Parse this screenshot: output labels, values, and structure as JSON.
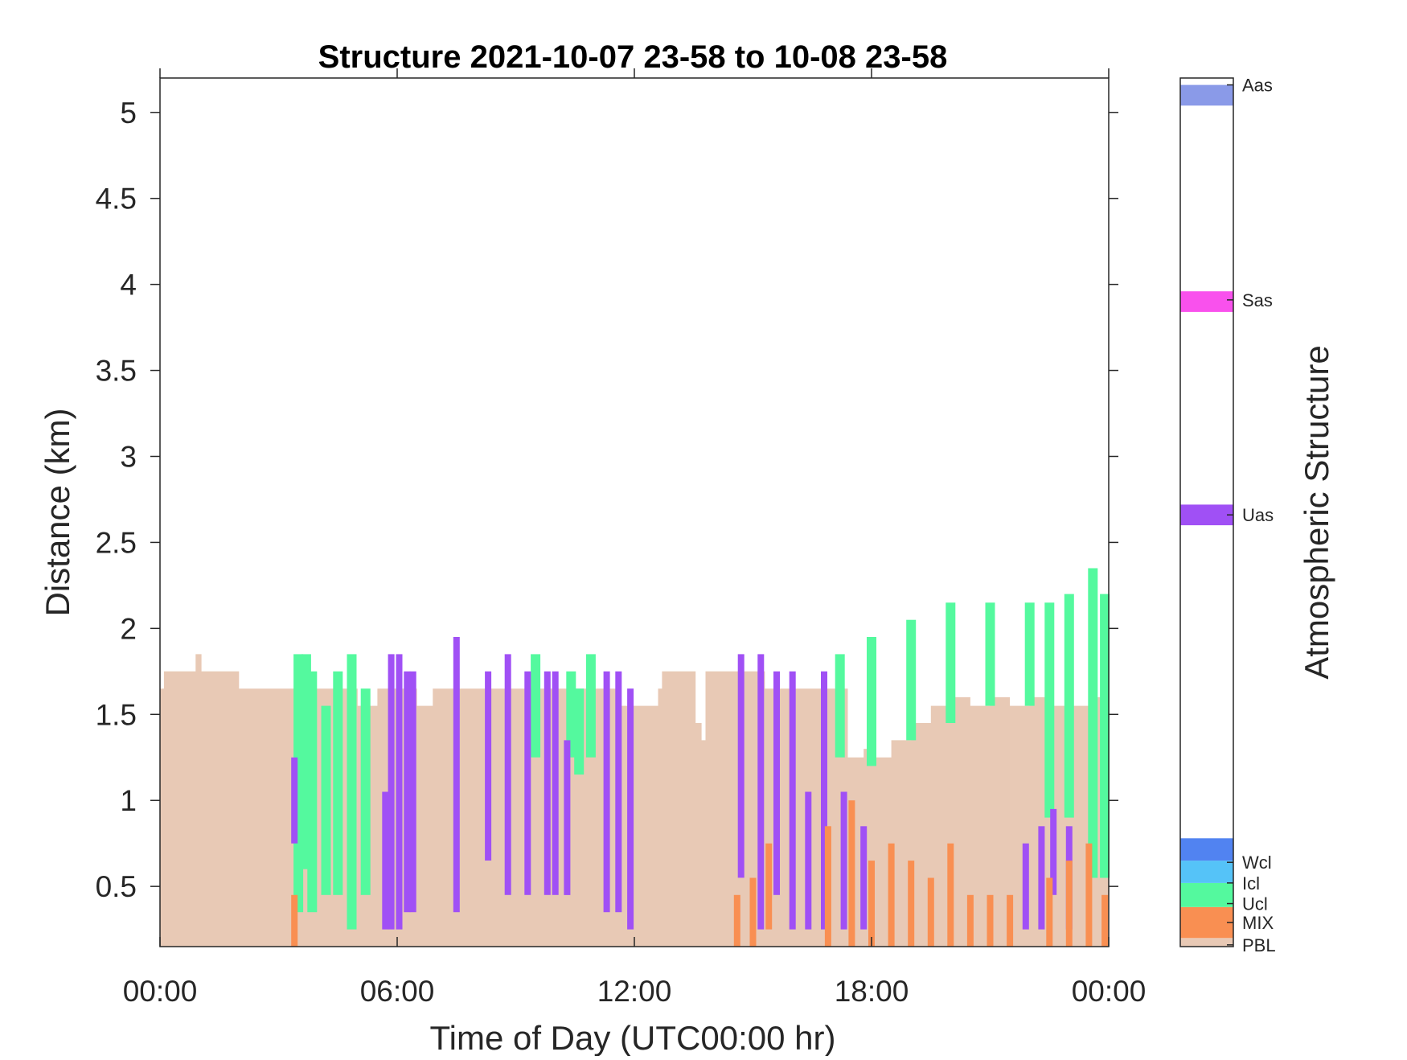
{
  "chart_data": {
    "type": "heatmap",
    "title": "Structure 2021-10-07 23-58 to 10-08 23-58",
    "xlabel": "Time of Day (UTC00:00 hr)",
    "ylabel": "Distance (km)",
    "xlim": [
      0,
      24
    ],
    "ylim": [
      0.15,
      5.2
    ],
    "x_ticks": [
      {
        "value": 0,
        "label": "00:00"
      },
      {
        "value": 6,
        "label": "06:00"
      },
      {
        "value": 12,
        "label": "12:00"
      },
      {
        "value": 18,
        "label": "18:00"
      },
      {
        "value": 24,
        "label": "00:00"
      }
    ],
    "y_ticks": [
      {
        "value": 0.5,
        "label": "0.5"
      },
      {
        "value": 1.0,
        "label": "1"
      },
      {
        "value": 1.5,
        "label": "1.5"
      },
      {
        "value": 2.0,
        "label": "2"
      },
      {
        "value": 2.5,
        "label": "2.5"
      },
      {
        "value": 3.0,
        "label": "3"
      },
      {
        "value": 3.5,
        "label": "3.5"
      },
      {
        "value": 4.0,
        "label": "4"
      },
      {
        "value": 4.5,
        "label": "4.5"
      },
      {
        "value": 5.0,
        "label": "5"
      }
    ],
    "colorbar": {
      "label": "Atmospheric Structure",
      "categories": [
        {
          "code": "PBL",
          "color": "#E8C9B5"
        },
        {
          "code": "MIX",
          "color": "#F98F52"
        },
        {
          "code": "Ucl",
          "color": "#54F99E"
        },
        {
          "code": "Icl",
          "color": "#55C3F8"
        },
        {
          "code": "Wcl",
          "color": "#5183F1"
        },
        {
          "code": "Uas",
          "color": "#A050F5"
        },
        {
          "code": "Sas",
          "color": "#F951ED"
        },
        {
          "code": "Aas",
          "color": "#8A9AE8"
        }
      ]
    },
    "layers": {
      "pbl_top": [
        [
          0.0,
          1.65
        ],
        [
          0.1,
          1.75
        ],
        [
          0.9,
          1.85
        ],
        [
          1.05,
          1.75
        ],
        [
          2.0,
          1.65
        ],
        [
          3.5,
          1.65
        ],
        [
          5.0,
          1.55
        ],
        [
          5.5,
          1.65
        ],
        [
          6.5,
          1.55
        ],
        [
          6.9,
          1.65
        ],
        [
          7.0,
          1.65
        ],
        [
          11.2,
          1.65
        ],
        [
          11.6,
          1.55
        ],
        [
          12.6,
          1.65
        ],
        [
          12.7,
          1.75
        ],
        [
          13.5,
          1.75
        ],
        [
          13.55,
          1.45
        ],
        [
          13.7,
          1.35
        ],
        [
          13.8,
          1.75
        ],
        [
          15.2,
          1.75
        ],
        [
          15.3,
          1.65
        ],
        [
          17.2,
          1.65
        ],
        [
          17.4,
          1.25
        ],
        [
          17.8,
          1.3
        ],
        [
          18.1,
          1.25
        ],
        [
          18.5,
          1.35
        ],
        [
          19.0,
          1.45
        ],
        [
          19.5,
          1.55
        ],
        [
          20.0,
          1.6
        ],
        [
          20.5,
          1.55
        ],
        [
          21.0,
          1.6
        ],
        [
          21.5,
          1.55
        ],
        [
          22.0,
          1.6
        ],
        [
          22.5,
          1.55
        ],
        [
          23.0,
          1.55
        ],
        [
          23.5,
          1.6
        ],
        [
          24.0,
          1.6
        ]
      ],
      "ucl_segments": [
        [
          3.5,
          0.35,
          1.85
        ],
        [
          3.7,
          0.6,
          1.85
        ],
        [
          3.85,
          0.35,
          1.75
        ],
        [
          4.2,
          0.45,
          1.55
        ],
        [
          4.5,
          0.45,
          1.75
        ],
        [
          4.85,
          0.25,
          1.85
        ],
        [
          5.2,
          0.45,
          1.65
        ],
        [
          9.5,
          1.25,
          1.85
        ],
        [
          10.4,
          1.25,
          1.75
        ],
        [
          10.6,
          1.15,
          1.65
        ],
        [
          10.9,
          1.25,
          1.85
        ],
        [
          17.2,
          1.25,
          1.85
        ],
        [
          18.0,
          1.2,
          1.95
        ],
        [
          19.0,
          1.35,
          2.05
        ],
        [
          20.0,
          1.45,
          2.15
        ],
        [
          21.0,
          1.55,
          2.15
        ],
        [
          22.0,
          1.55,
          2.15
        ],
        [
          22.5,
          0.9,
          2.15
        ],
        [
          23.0,
          0.9,
          2.2
        ],
        [
          23.6,
          0.55,
          2.35
        ],
        [
          23.9,
          0.55,
          2.2
        ]
      ],
      "uas_segments": [
        [
          3.4,
          0.75,
          1.25
        ],
        [
          5.7,
          0.25,
          1.05
        ],
        [
          5.85,
          0.25,
          1.85
        ],
        [
          6.05,
          0.25,
          1.85
        ],
        [
          6.25,
          0.35,
          1.75
        ],
        [
          6.4,
          0.35,
          1.75
        ],
        [
          7.5,
          0.35,
          1.95
        ],
        [
          8.3,
          0.65,
          1.75
        ],
        [
          8.8,
          0.45,
          1.85
        ],
        [
          9.3,
          0.45,
          1.75
        ],
        [
          9.8,
          0.45,
          1.75
        ],
        [
          10.0,
          0.45,
          1.75
        ],
        [
          10.3,
          0.45,
          1.35
        ],
        [
          11.3,
          0.35,
          1.75
        ],
        [
          11.6,
          0.35,
          1.75
        ],
        [
          11.9,
          0.25,
          1.65
        ],
        [
          14.7,
          0.55,
          1.85
        ],
        [
          15.2,
          0.25,
          1.85
        ],
        [
          15.6,
          0.45,
          1.75
        ],
        [
          16.0,
          0.25,
          1.75
        ],
        [
          16.4,
          0.25,
          1.05
        ],
        [
          16.8,
          0.25,
          1.75
        ],
        [
          17.3,
          0.25,
          1.05
        ],
        [
          17.8,
          0.25,
          0.85
        ],
        [
          21.9,
          0.25,
          0.75
        ],
        [
          22.3,
          0.25,
          0.85
        ],
        [
          22.6,
          0.45,
          0.95
        ],
        [
          23.0,
          0.25,
          0.85
        ]
      ],
      "mix_segments": [
        [
          3.4,
          0.15,
          0.45
        ],
        [
          14.6,
          0.15,
          0.45
        ],
        [
          15.0,
          0.15,
          0.55
        ],
        [
          15.4,
          0.25,
          0.75
        ],
        [
          16.9,
          0.15,
          0.85
        ],
        [
          17.5,
          0.15,
          1.0
        ],
        [
          18.0,
          0.15,
          0.65
        ],
        [
          18.5,
          0.15,
          0.75
        ],
        [
          19.0,
          0.15,
          0.65
        ],
        [
          19.5,
          0.15,
          0.55
        ],
        [
          20.0,
          0.15,
          0.75
        ],
        [
          20.5,
          0.15,
          0.45
        ],
        [
          21.0,
          0.15,
          0.45
        ],
        [
          21.5,
          0.15,
          0.45
        ],
        [
          22.5,
          0.15,
          0.55
        ],
        [
          23.0,
          0.15,
          0.65
        ],
        [
          23.5,
          0.15,
          0.75
        ],
        [
          23.9,
          0.15,
          0.45
        ]
      ]
    }
  }
}
